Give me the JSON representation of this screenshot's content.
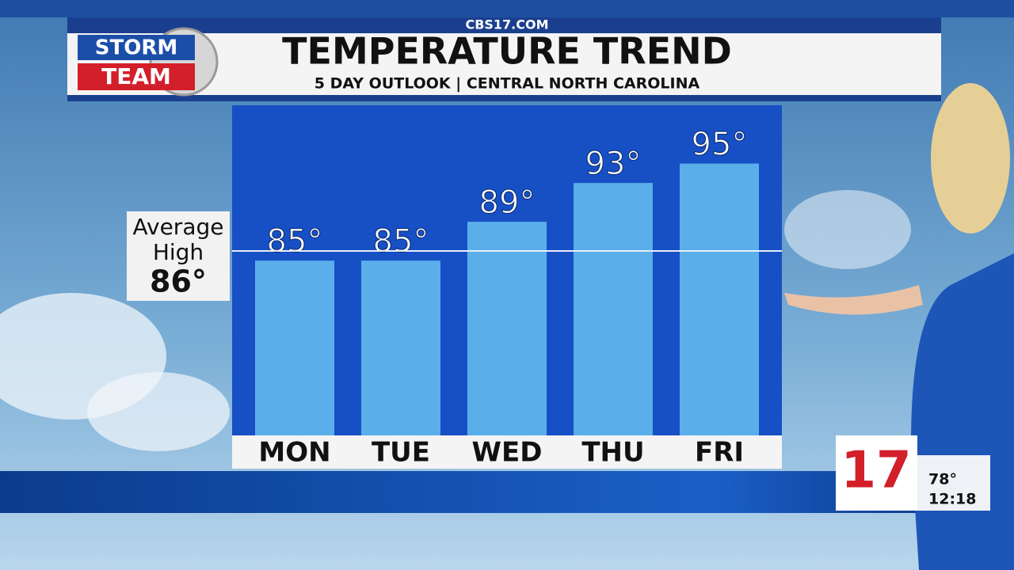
{
  "header": {
    "site": "CBS17.COM",
    "logo": [
      "STORM",
      "TEAM"
    ]
  },
  "chart_data": {
    "type": "bar",
    "title": "TEMPERATURE TREND",
    "subtitle": "5 DAY OUTLOOK | CENTRAL NORTH CAROLINA",
    "categories": [
      "MON",
      "TUE",
      "WED",
      "THU",
      "FRI"
    ],
    "values": [
      85,
      85,
      89,
      93,
      95
    ],
    "value_labels": [
      "85°",
      "85°",
      "89°",
      "93°",
      "95°"
    ],
    "color": "#5aaeea",
    "ylim": [
      67,
      101
    ],
    "reference": {
      "label_lines": [
        "Average",
        "High"
      ],
      "value": 86,
      "value_label": "86°"
    }
  },
  "bug": {
    "channel": "17",
    "temperature": "78°",
    "time": "12:18"
  }
}
